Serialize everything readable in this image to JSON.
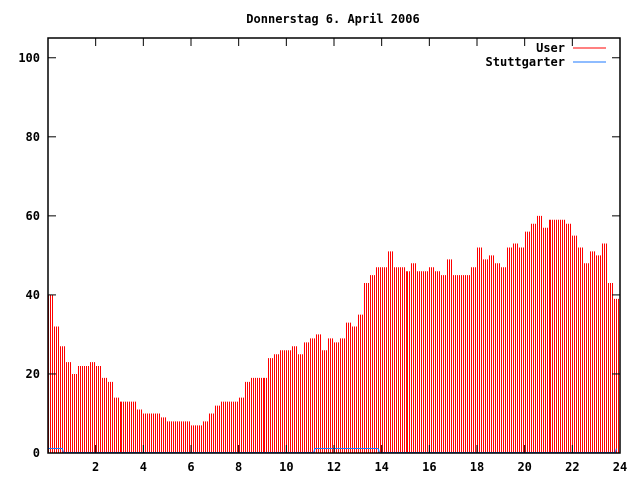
{
  "chart_data": {
    "type": "bar",
    "title": "Donnerstag 6. April 2006",
    "xlabel": "",
    "ylabel": "",
    "xlim": [
      0,
      24
    ],
    "ylim": [
      0,
      105
    ],
    "x_ticks": [
      2,
      4,
      6,
      8,
      10,
      12,
      14,
      16,
      18,
      20,
      22,
      24
    ],
    "y_ticks": [
      0,
      20,
      40,
      60,
      80,
      100
    ],
    "grid": false,
    "legend_position": "top-right",
    "series": [
      {
        "name": "User",
        "style": "impulses",
        "color": "#ff0000",
        "x": [
          0,
          0.25,
          0.5,
          0.75,
          1,
          1.25,
          1.5,
          1.75,
          2,
          2.25,
          2.5,
          2.75,
          3,
          3.25,
          3.5,
          3.75,
          4,
          4.25,
          4.5,
          4.75,
          5,
          5.25,
          5.5,
          5.75,
          6,
          6.25,
          6.5,
          6.75,
          7,
          7.25,
          7.5,
          7.75,
          8,
          8.25,
          8.5,
          8.75,
          9,
          9.25,
          9.5,
          9.75,
          10,
          10.25,
          10.5,
          10.75,
          11,
          11.25,
          11.5,
          11.75,
          12,
          12.25,
          12.5,
          12.75,
          13,
          13.25,
          13.5,
          13.75,
          14,
          14.25,
          14.5,
          14.75,
          15,
          15.25,
          15.5,
          15.75,
          16,
          16.25,
          16.5,
          16.75,
          17,
          17.25,
          17.5,
          17.75,
          18,
          18.25,
          18.5,
          18.75,
          19,
          19.25,
          19.5,
          19.75,
          20,
          20.25,
          20.5,
          20.75,
          21,
          21.25,
          21.5,
          21.75,
          22,
          22.25,
          22.5,
          22.75,
          23,
          23.25,
          23.5,
          23.75
        ],
        "values": [
          40,
          32,
          27,
          23,
          20,
          22,
          22,
          23,
          22,
          19,
          18,
          14,
          13,
          13,
          13,
          11,
          10,
          10,
          10,
          9,
          8,
          8,
          8,
          8,
          7,
          7,
          8,
          10,
          12,
          13,
          13,
          13,
          14,
          18,
          19,
          19,
          19,
          24,
          25,
          26,
          26,
          27,
          25,
          28,
          29,
          30,
          26,
          29,
          28,
          29,
          33,
          32,
          35,
          43,
          45,
          47,
          47,
          51,
          47,
          47,
          46,
          48,
          46,
          46,
          47,
          46,
          45,
          49,
          45,
          45,
          45,
          47,
          52,
          49,
          50,
          48,
          47,
          52,
          53,
          52,
          56,
          58,
          60,
          57,
          59,
          59,
          59,
          58,
          55,
          52,
          48,
          51,
          50,
          53,
          43,
          39
        ]
      },
      {
        "name": "Stuttgarter",
        "style": "lines",
        "color": "#1e78ff",
        "x": [
          0,
          0.6,
          0.65,
          11.15,
          11.2,
          13.85,
          13.9,
          23.8,
          23.85
        ],
        "values": [
          1,
          1,
          0,
          0,
          1,
          1,
          0,
          0,
          1
        ]
      }
    ]
  }
}
